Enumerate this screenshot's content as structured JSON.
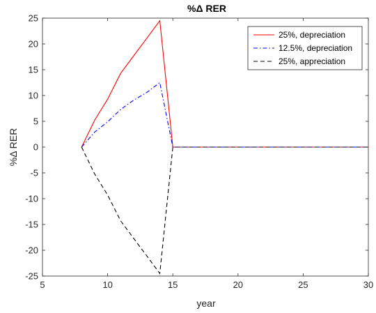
{
  "chart_data": {
    "type": "line",
    "title": "%Δ RER",
    "xlabel": "year",
    "ylabel": "%Δ RER",
    "xlim": [
      5,
      30
    ],
    "ylim": [
      -25,
      25
    ],
    "xticks": [
      5,
      10,
      15,
      20,
      25,
      30
    ],
    "yticks": [
      -25,
      -20,
      -15,
      -10,
      -5,
      0,
      5,
      10,
      15,
      20,
      25
    ],
    "grid": false,
    "legend_position": "top-right",
    "series": [
      {
        "name": "25%, depreciation",
        "color": "#ff0000",
        "style": "solid",
        "x": [
          8,
          9,
          10,
          11,
          12,
          13,
          14,
          15,
          16,
          17,
          18,
          19,
          20,
          21,
          22,
          23,
          24,
          25,
          26,
          27,
          28,
          29,
          30
        ],
        "y": [
          0,
          5.2,
          9.3,
          14.3,
          17.7,
          21.1,
          24.5,
          0,
          0,
          0,
          0,
          0,
          0,
          0,
          0,
          0,
          0,
          0,
          0,
          0,
          0,
          0,
          0
        ]
      },
      {
        "name": "12.5%, depreciation",
        "color": "#0000ff",
        "style": "dashdot",
        "x": [
          8,
          9,
          10,
          11,
          12,
          13,
          14,
          15,
          16,
          17,
          18,
          19,
          20,
          21,
          22,
          23,
          24,
          25,
          26,
          27,
          28,
          29,
          30
        ],
        "y": [
          0,
          2.9,
          4.9,
          7.3,
          9.1,
          10.6,
          12.5,
          0,
          0,
          0,
          0,
          0,
          0,
          0,
          0,
          0,
          0,
          0,
          0,
          0,
          0,
          0,
          0
        ]
      },
      {
        "name": "25%, appreciation",
        "color": "#000000",
        "style": "dashed",
        "x": [
          8,
          9,
          10,
          11,
          12,
          13,
          14,
          15,
          16,
          17,
          18,
          19,
          20,
          21,
          22,
          23,
          24,
          25,
          26,
          27,
          28,
          29,
          30
        ],
        "y": [
          0,
          -5.2,
          -9.3,
          -14.3,
          -17.7,
          -21.1,
          -24.5,
          0,
          0,
          0,
          0,
          0,
          0,
          0,
          0,
          0,
          0,
          0,
          0,
          0,
          0,
          0,
          0
        ]
      }
    ]
  }
}
